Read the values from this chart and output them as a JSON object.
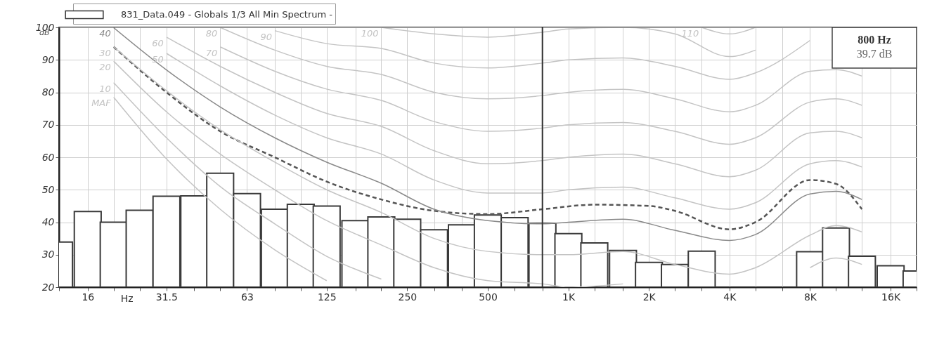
{
  "chart_data": {
    "type": "bar",
    "xlabel": "Hz",
    "ylabel": "dB",
    "log": "x",
    "grid": true,
    "legend": "top left",
    "x": [
      12.5,
      16,
      20,
      25,
      31.5,
      40,
      50,
      63,
      80,
      100,
      125,
      160,
      200,
      250,
      315,
      400,
      500,
      630,
      800,
      1000,
      1250,
      1600,
      2000,
      2500,
      3150,
      4000,
      5000,
      6300,
      8000,
      10000,
      12500,
      16000,
      20000
    ],
    "xlim": [
      12.5,
      20000
    ],
    "xticks": [
      {
        "value": 12.5,
        "label": null
      },
      16,
      {
        "value": 20,
        "label": null
      },
      {
        "value": 25,
        "label": null
      },
      31.5,
      {
        "value": 40,
        "label": null
      },
      {
        "value": 50,
        "label": null
      },
      63,
      {
        "value": 80,
        "label": null
      },
      {
        "value": 100,
        "label": null
      },
      125,
      {
        "value": 160,
        "label": null
      },
      {
        "value": 200,
        "label": null
      },
      250,
      {
        "value": 315,
        "label": null
      },
      {
        "value": 400,
        "label": null
      },
      500,
      {
        "value": 630,
        "label": null
      },
      {
        "value": 800,
        "label": null
      },
      {
        "value": 1000,
        "label": "1K"
      },
      {
        "value": 1250,
        "label": null
      },
      {
        "value": 1600,
        "label": null
      },
      {
        "value": 2000,
        "label": "2K"
      },
      {
        "value": 2500,
        "label": null
      },
      {
        "value": 3150,
        "label": null
      },
      {
        "value": 4000,
        "label": "4K"
      },
      {
        "value": 5000,
        "label": null
      },
      {
        "value": 6300,
        "label": null
      },
      {
        "value": 8000,
        "label": "8K"
      },
      {
        "value": 10000,
        "label": null
      },
      {
        "value": 12500,
        "label": null
      },
      {
        "value": 16000,
        "label": "16K"
      },
      {
        "value": 20000,
        "label": null
      }
    ],
    "ylim": [
      20,
      100
    ],
    "yticks": [
      20,
      30,
      40,
      50,
      60,
      70,
      80,
      90,
      100
    ],
    "ref_lines": [
      {
        "axis": "x",
        "value": 800,
        "color": "#333333"
      }
    ],
    "annotations": [
      "800 Hz",
      "39.7 dB"
    ],
    "series": [
      {
        "name": "831_Data.049 - Globals 1/3 All Min Spectrum -",
        "color": "#ffffff",
        "values": [
          33.9,
          43.3,
          40.0,
          43.7,
          48.0,
          48.1,
          55.1,
          48.8,
          44.0,
          45.5,
          45.0,
          40.5,
          41.6,
          40.9,
          37.7,
          39.2,
          42.2,
          41.4,
          39.7,
          36.5,
          33.6,
          31.3,
          27.6,
          27.0,
          31.1,
          null,
          null,
          null,
          30.9,
          38.2,
          29.5,
          26.6,
          25.0
        ]
      },
      {
        "type": "line",
        "line_style": "dashed",
        "color": "#555555",
        "x": [
          20,
          31.5,
          50,
          80,
          125,
          200,
          315,
          500,
          800,
          1250,
          2000,
          2500,
          4000,
          5000,
          8000,
          10000,
          12500
        ],
        "values": [
          94,
          80,
          68,
          60,
          52.5,
          47,
          43.5,
          42.5,
          44,
          45.4,
          45,
          43.5,
          37.8,
          40,
          53,
          51.8,
          44
        ]
      },
      {
        "type": "line",
        "name": "MAF",
        "color": "#c4c4c4",
        "x": [
          20,
          31.5,
          50,
          80,
          125
        ],
        "values": [
          78.5,
          59.5,
          44,
          31.5,
          22
        ]
      },
      {
        "type": "line",
        "name": "10",
        "color": "#c4c4c4",
        "x": [
          20,
          31.5,
          50,
          80,
          125,
          200
        ],
        "values": [
          83,
          66,
          51,
          39.5,
          29.5,
          22.5
        ]
      },
      {
        "type": "line",
        "name": "20",
        "color": "#c4c4c4",
        "x": [
          20,
          31.5,
          50,
          80,
          125,
          200,
          315,
          500,
          800,
          1000,
          1600,
          2500,
          4000,
          5000,
          8000,
          10000,
          12500
        ],
        "values": [
          89.6,
          74,
          61,
          50,
          40.5,
          33,
          26,
          22,
          21,
          20,
          21,
          null,
          null,
          null,
          26,
          29,
          27
        ]
      },
      {
        "type": "line",
        "name": "30",
        "color": "#c4c4c4",
        "x": [
          20,
          31.5,
          50,
          80,
          125,
          200,
          315,
          500,
          800,
          1000,
          1600,
          2500,
          4000,
          5000,
          8000,
          10000,
          12500
        ],
        "values": [
          94,
          80.5,
          68.5,
          58.5,
          50,
          43,
          35,
          31,
          30,
          30,
          31,
          27,
          24,
          26,
          36,
          39,
          37
        ]
      },
      {
        "type": "line",
        "name": "40",
        "color": "#8a8a8a",
        "x": [
          20,
          31.5,
          50,
          80,
          125,
          200,
          315,
          500,
          800,
          1000,
          1600,
          2500,
          4000,
          5000,
          8000,
          10000,
          12500
        ],
        "values": [
          99.9,
          86.9,
          75.5,
          66,
          58.5,
          52,
          44,
          40.5,
          39.5,
          40,
          40.9,
          37.5,
          34.4,
          36.2,
          48.7,
          49.5,
          47
        ]
      },
      {
        "type": "line",
        "name": "50",
        "color": "#c4c4c4",
        "x": [
          31.5,
          50,
          80,
          125,
          200,
          315,
          500,
          800,
          1000,
          1600,
          2500,
          4000,
          5000,
          8000,
          10000,
          12500
        ],
        "values": [
          92,
          82,
          73,
          66,
          61,
          53,
          49,
          49,
          50,
          50.8,
          47.5,
          44,
          46,
          58,
          59,
          57
        ]
      },
      {
        "type": "line",
        "name": "60",
        "color": "#c4c4c4",
        "x": [
          31.5,
          50,
          80,
          125,
          200,
          315,
          500,
          800,
          1000,
          1600,
          2500,
          4000,
          5000,
          8000,
          10000,
          12500
        ],
        "values": [
          97,
          88,
          80,
          73.5,
          69.5,
          62,
          58,
          59,
          60,
          61,
          58,
          54,
          56,
          67.5,
          68,
          66
        ]
      },
      {
        "type": "line",
        "name": "70",
        "color": "#c4c4c4",
        "x": [
          50,
          80,
          125,
          200,
          315,
          500,
          800,
          1000,
          1600,
          2500,
          4000,
          5000,
          8000,
          10000,
          12500
        ],
        "values": [
          94,
          86.5,
          81,
          77.5,
          71,
          68,
          69,
          70,
          70.7,
          68,
          64,
          66,
          77,
          78,
          76
        ]
      },
      {
        "type": "line",
        "name": "80",
        "color": "#c4c4c4",
        "x": [
          50,
          80,
          125,
          200,
          315,
          500,
          800,
          1000,
          1600,
          2500,
          4000,
          5000,
          8000,
          10000,
          12500
        ],
        "values": [
          100,
          93,
          88,
          85.5,
          80,
          78,
          79,
          80,
          80.9,
          78,
          74,
          76,
          86.5,
          87,
          85
        ]
      },
      {
        "type": "line",
        "name": "90",
        "color": "#c4c4c4",
        "x": [
          80,
          125,
          200,
          315,
          500,
          800,
          1000,
          1600,
          2500,
          4000,
          5000,
          8000
        ],
        "values": [
          99,
          95,
          93.5,
          89,
          87.5,
          89,
          90,
          90.6,
          88,
          84,
          86,
          96
        ]
      },
      {
        "type": "line",
        "name": "100",
        "color": "#c4c4c4",
        "x": [
          200,
          315,
          500,
          800,
          1000,
          1600,
          2500,
          4000,
          5000
        ],
        "values": [
          100,
          98,
          97,
          98.5,
          99.5,
          100,
          98,
          91,
          93
        ]
      },
      {
        "type": "line",
        "name": "110",
        "color": "#c4c4c4",
        "x": [
          3150,
          4000,
          5000
        ],
        "values": [
          100,
          98,
          100
        ]
      }
    ]
  }
}
